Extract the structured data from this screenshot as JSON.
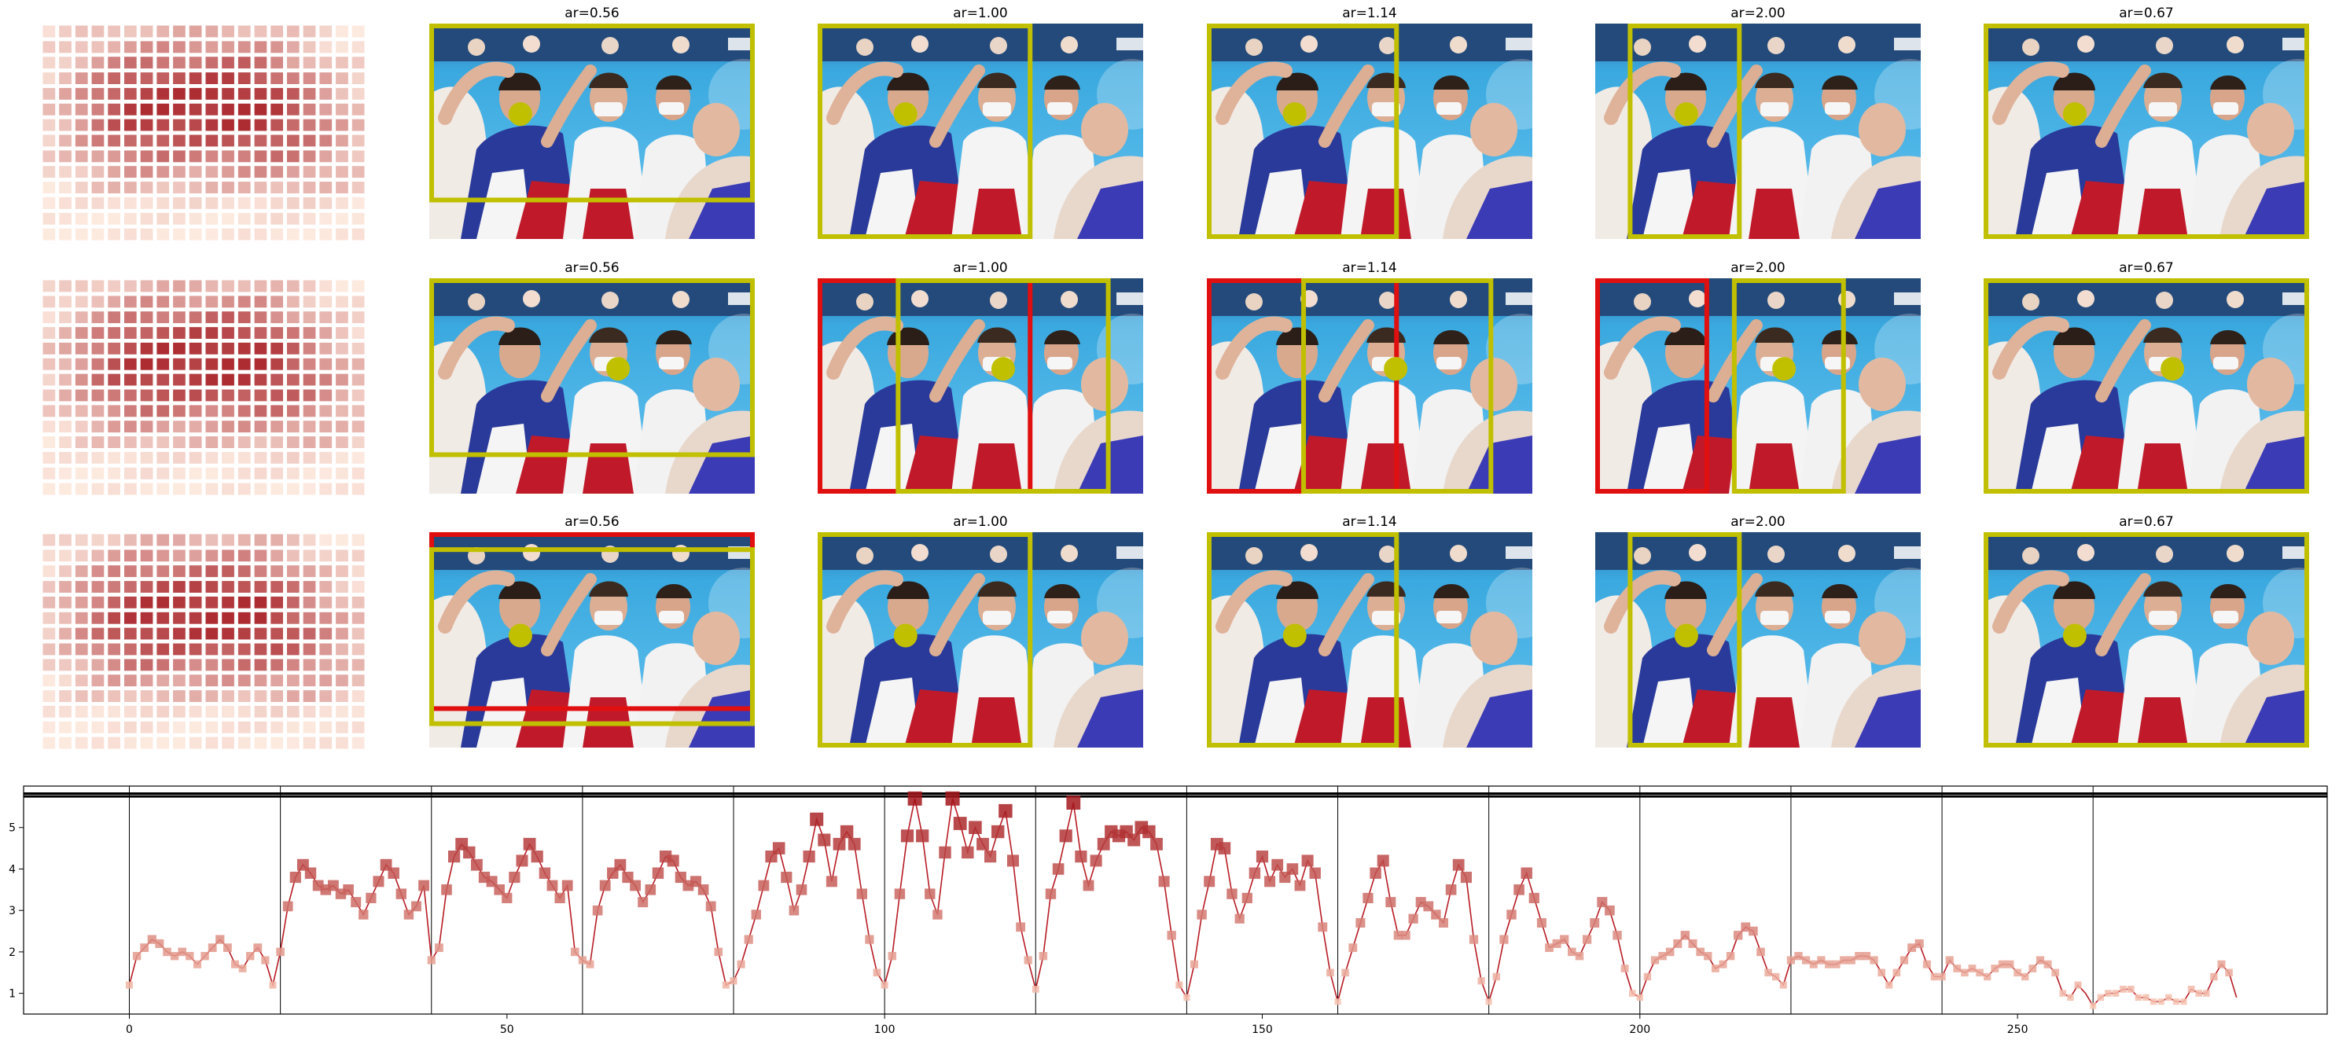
{
  "panel_titles": [
    [
      "ar=0.56",
      "ar=1.00",
      "ar=1.14",
      "ar=2.00",
      "ar=0.67"
    ],
    [
      "ar=0.56",
      "ar=1.00",
      "ar=1.14",
      "ar=2.00",
      "ar=0.67"
    ],
    [
      "ar=0.56",
      "ar=1.00",
      "ar=1.14",
      "ar=2.00",
      "ar=0.67"
    ]
  ],
  "colors": {
    "keep_box": "#c0c000",
    "alt_box": "#e01010",
    "face_dot": "#c0c000",
    "heat_low": "#fde8dc",
    "heat_high": "#a3151b",
    "line": "#b81b24",
    "banner_blue": "#3aa9df",
    "shirt_blue": "#2a3a9a",
    "shirt_red": "#c01a2a"
  },
  "crops": [
    [
      {
        "ar": 0.56,
        "boxes": [
          {
            "color": "keep",
            "x0": 0.0,
            "x1": 1.0,
            "y0": 0.0,
            "y1": 0.83
          }
        ],
        "face": [
          0.28,
          0.42
        ]
      },
      {
        "ar": 1.0,
        "boxes": [
          {
            "color": "keep",
            "x0": 0.0,
            "x1": 0.66,
            "y0": 0.0,
            "y1": 1.0
          }
        ],
        "face": [
          0.27,
          0.42
        ]
      },
      {
        "ar": 1.14,
        "boxes": [
          {
            "color": "keep",
            "x0": 0.0,
            "x1": 0.59,
            "y0": 0.0,
            "y1": 1.0
          }
        ],
        "face": [
          0.27,
          0.42
        ]
      },
      {
        "ar": 2.0,
        "boxes": [
          {
            "color": "keep",
            "x0": 0.1,
            "x1": 0.45,
            "y0": 0.0,
            "y1": 1.0
          }
        ],
        "face": [
          0.28,
          0.42
        ]
      },
      {
        "ar": 0.67,
        "boxes": [
          {
            "color": "keep",
            "x0": 0.0,
            "x1": 1.0,
            "y0": 0.0,
            "y1": 1.0
          }
        ],
        "face": [
          0.28,
          0.42
        ]
      }
    ],
    [
      {
        "ar": 0.56,
        "boxes": [
          {
            "color": "keep",
            "x0": 0.0,
            "x1": 1.0,
            "y0": 0.0,
            "y1": 0.83
          }
        ],
        "face": [
          0.58,
          0.42
        ]
      },
      {
        "ar": 1.0,
        "boxes": [
          {
            "color": "alt",
            "x0": 0.0,
            "x1": 0.66,
            "y0": 0.0,
            "y1": 1.0
          },
          {
            "color": "keep",
            "x0": 0.24,
            "x1": 0.9,
            "y0": 0.0,
            "y1": 1.0
          }
        ],
        "face": [
          0.57,
          0.42
        ]
      },
      {
        "ar": 1.14,
        "boxes": [
          {
            "color": "alt",
            "x0": 0.0,
            "x1": 0.59,
            "y0": 0.0,
            "y1": 1.0
          },
          {
            "color": "keep",
            "x0": 0.29,
            "x1": 0.88,
            "y0": 0.0,
            "y1": 1.0
          }
        ],
        "face": [
          0.58,
          0.42
        ]
      },
      {
        "ar": 2.0,
        "boxes": [
          {
            "color": "alt",
            "x0": 0.0,
            "x1": 0.35,
            "y0": 0.0,
            "y1": 1.0
          },
          {
            "color": "keep",
            "x0": 0.42,
            "x1": 0.77,
            "y0": 0.0,
            "y1": 1.0
          }
        ],
        "face": [
          0.58,
          0.42
        ]
      },
      {
        "ar": 0.67,
        "boxes": [
          {
            "color": "keep",
            "x0": 0.0,
            "x1": 1.0,
            "y0": 0.0,
            "y1": 1.0
          }
        ],
        "face": [
          0.58,
          0.42
        ]
      }
    ],
    [
      {
        "ar": 0.56,
        "boxes": [
          {
            "color": "alt",
            "x0": 0.0,
            "x1": 1.0,
            "y0": 0.0,
            "y1": 0.83
          },
          {
            "color": "keep",
            "x0": 0.0,
            "x1": 1.0,
            "y0": 0.07,
            "y1": 0.9
          }
        ],
        "face": [
          0.28,
          0.48
        ]
      },
      {
        "ar": 1.0,
        "boxes": [
          {
            "color": "keep",
            "x0": 0.0,
            "x1": 0.66,
            "y0": 0.0,
            "y1": 1.0
          }
        ],
        "face": [
          0.27,
          0.48
        ]
      },
      {
        "ar": 1.14,
        "boxes": [
          {
            "color": "keep",
            "x0": 0.0,
            "x1": 0.59,
            "y0": 0.0,
            "y1": 1.0
          }
        ],
        "face": [
          0.27,
          0.48
        ]
      },
      {
        "ar": 2.0,
        "boxes": [
          {
            "color": "keep",
            "x0": 0.1,
            "x1": 0.45,
            "y0": 0.0,
            "y1": 1.0
          }
        ],
        "face": [
          0.28,
          0.48
        ]
      },
      {
        "ar": 0.67,
        "boxes": [
          {
            "color": "keep",
            "x0": 0.0,
            "x1": 1.0,
            "y0": 0.0,
            "y1": 1.0
          }
        ],
        "face": [
          0.28,
          0.48
        ]
      }
    ]
  ],
  "chart_data": {
    "type": "line",
    "title": "",
    "xlabel": "",
    "ylabel": "",
    "xlim": [
      -14,
      291
    ],
    "ylim": [
      0.5,
      6.0
    ],
    "x_ticks": [
      0,
      50,
      100,
      150,
      200,
      250
    ],
    "y_ticks": [
      1,
      2,
      3,
      4,
      5
    ],
    "segment_boundaries": [
      0,
      20,
      40,
      60,
      80,
      100,
      120,
      140,
      160,
      180,
      200,
      220,
      240,
      260
    ],
    "reference_lines": [
      5.75,
      5.82
    ],
    "grid": false,
    "legend": "none",
    "y_values": [
      1.2,
      1.9,
      2.1,
      2.3,
      2.2,
      2.0,
      1.9,
      2.0,
      1.9,
      1.7,
      1.9,
      2.1,
      2.3,
      2.1,
      1.7,
      1.6,
      1.9,
      2.1,
      1.8,
      1.2,
      2.0,
      3.1,
      3.8,
      4.1,
      3.9,
      3.6,
      3.5,
      3.6,
      3.4,
      3.5,
      3.2,
      2.9,
      3.3,
      3.7,
      4.1,
      3.9,
      3.4,
      2.9,
      3.1,
      3.6,
      1.8,
      2.1,
      3.5,
      4.3,
      4.6,
      4.4,
      4.1,
      3.8,
      3.7,
      3.5,
      3.3,
      3.8,
      4.2,
      4.6,
      4.3,
      3.9,
      3.6,
      3.3,
      3.6,
      2.0,
      1.8,
      1.7,
      3.0,
      3.6,
      3.9,
      4.1,
      3.8,
      3.6,
      3.2,
      3.5,
      3.9,
      4.3,
      4.2,
      3.8,
      3.6,
      3.7,
      3.5,
      3.1,
      2.0,
      1.2,
      1.3,
      1.7,
      2.3,
      2.9,
      3.6,
      4.3,
      4.5,
      3.8,
      3.0,
      3.5,
      4.3,
      5.2,
      4.7,
      3.7,
      4.6,
      4.9,
      4.6,
      3.4,
      2.3,
      1.5,
      1.2,
      1.9,
      3.4,
      4.8,
      5.7,
      4.8,
      3.4,
      2.9,
      4.4,
      5.7,
      5.1,
      4.4,
      5.0,
      4.6,
      4.3,
      4.9,
      5.4,
      4.2,
      2.6,
      1.8,
      1.1,
      1.9,
      3.4,
      4.0,
      4.8,
      5.6,
      4.3,
      3.6,
      4.2,
      4.6,
      4.9,
      4.8,
      4.9,
      4.7,
      5.0,
      4.9,
      4.6,
      3.7,
      2.4,
      1.2,
      0.9,
      1.7,
      2.9,
      3.7,
      4.6,
      4.5,
      3.4,
      2.8,
      3.3,
      3.9,
      4.3,
      3.7,
      4.1,
      3.8,
      4.0,
      3.6,
      4.2,
      3.9,
      2.6,
      1.5,
      0.8,
      1.5,
      2.1,
      2.7,
      3.3,
      3.9,
      4.2,
      3.2,
      2.4,
      2.4,
      2.8,
      3.2,
      3.1,
      2.9,
      2.7,
      3.5,
      4.1,
      3.8,
      2.3,
      1.3,
      0.8,
      1.4,
      2.3,
      2.9,
      3.5,
      3.9,
      3.3,
      2.7,
      2.1,
      2.2,
      2.3,
      2.0,
      1.9,
      2.3,
      2.7,
      3.2,
      3.0,
      2.4,
      1.6,
      1.0,
      0.9,
      1.4,
      1.8,
      1.9,
      2.0,
      2.2,
      2.4,
      2.2,
      2.0,
      1.9,
      1.6,
      1.7,
      1.9,
      2.4,
      2.6,
      2.5,
      2.0,
      1.5,
      1.4,
      1.2,
      1.8,
      1.9,
      1.8,
      1.7,
      1.8,
      1.7,
      1.7,
      1.8,
      1.8,
      1.9,
      1.9,
      1.8,
      1.5,
      1.2,
      1.5,
      1.8,
      2.1,
      2.2,
      1.7,
      1.4,
      1.4,
      1.8,
      1.6,
      1.5,
      1.6,
      1.5,
      1.4,
      1.6,
      1.7,
      1.7,
      1.5,
      1.4,
      1.6,
      1.8,
      1.7,
      1.5,
      1.0,
      0.9,
      1.2,
      1.0,
      0.7,
      0.9,
      1.0,
      1.0,
      1.1,
      1.1,
      0.9,
      0.9,
      0.8,
      0.8,
      0.9,
      0.8,
      0.8,
      1.1,
      1.0,
      1.0,
      1.4,
      1.7,
      1.5,
      0.9
    ]
  }
}
